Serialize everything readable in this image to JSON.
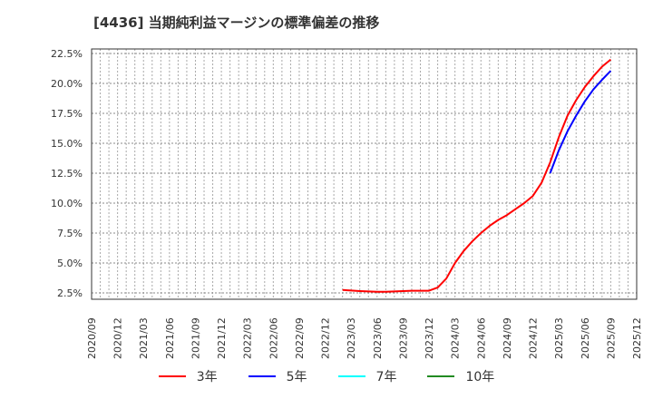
{
  "title": "[4436]  当期純利益マージンの標準偏差の推移",
  "chart_data": {
    "type": "line",
    "title": "[4436]  当期純利益マージンの標準偏差の推移",
    "xlabel": "",
    "ylabel": "",
    "ylim": [
      2.0,
      22.9
    ],
    "grid": true,
    "legend_position": "bottom",
    "y_ticks": [
      "2.5%",
      "5.0%",
      "7.5%",
      "10.0%",
      "12.5%",
      "15.0%",
      "17.5%",
      "20.0%",
      "22.5%"
    ],
    "y_tick_values": [
      2.5,
      5.0,
      7.5,
      10.0,
      12.5,
      15.0,
      17.5,
      20.0,
      22.5
    ],
    "x_ticks": [
      "2020/09",
      "2020/12",
      "2021/03",
      "2021/06",
      "2021/09",
      "2021/12",
      "2022/03",
      "2022/06",
      "2022/09",
      "2022/12",
      "2023/03",
      "2023/06",
      "2023/09",
      "2023/12",
      "2024/03",
      "2024/06",
      "2024/09",
      "2024/12",
      "2025/03",
      "2025/06",
      "2025/09",
      "2025/12"
    ],
    "x_start": "2020/09",
    "x_end": "2025/12",
    "series": [
      {
        "name": "3年",
        "color": "#ff0000",
        "start_month_index": 29,
        "x": [
          "2023/02",
          "2023/03",
          "2023/04",
          "2023/05",
          "2023/06",
          "2023/07",
          "2023/08",
          "2023/09",
          "2023/10",
          "2023/11",
          "2023/12",
          "2024/01",
          "2024/02",
          "2024/03",
          "2024/04",
          "2024/05",
          "2024/06",
          "2024/07",
          "2024/08",
          "2024/09",
          "2024/10",
          "2024/11",
          "2024/12",
          "2025/01",
          "2025/02",
          "2025/03",
          "2025/04",
          "2025/05",
          "2025/06",
          "2025/07",
          "2025/08",
          "2025/09"
        ],
        "values": [
          2.75,
          2.7,
          2.65,
          2.62,
          2.6,
          2.6,
          2.62,
          2.65,
          2.68,
          2.68,
          2.68,
          2.95,
          3.7,
          5.0,
          6.0,
          6.8,
          7.5,
          8.1,
          8.6,
          9.0,
          9.5,
          10.0,
          10.6,
          11.7,
          13.4,
          15.5,
          17.3,
          18.6,
          19.7,
          20.6,
          21.4,
          22.0
        ]
      },
      {
        "name": "5年",
        "color": "#0000ff",
        "start_month_index": 53,
        "x": [
          "2025/02",
          "2025/03",
          "2025/04",
          "2025/05",
          "2025/06",
          "2025/07",
          "2025/08",
          "2025/09"
        ],
        "values": [
          12.5,
          14.4,
          16.0,
          17.3,
          18.5,
          19.5,
          20.3,
          21.05
        ]
      },
      {
        "name": "7年",
        "color": "#00ffff",
        "start_month_index": null,
        "x": [],
        "values": []
      },
      {
        "name": "10年",
        "color": "#228b22",
        "start_month_index": null,
        "x": [],
        "values": []
      }
    ]
  },
  "legend": [
    {
      "label": "3年",
      "color": "#ff0000"
    },
    {
      "label": "5年",
      "color": "#0000ff"
    },
    {
      "label": "7年",
      "color": "#00ffff"
    },
    {
      "label": "10年",
      "color": "#228b22"
    }
  ]
}
